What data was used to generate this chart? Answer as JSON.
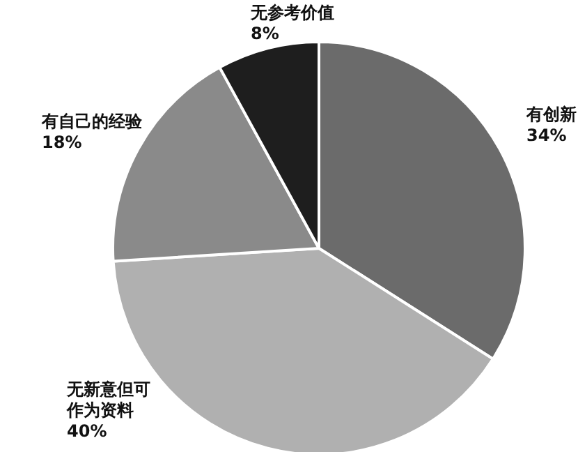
{
  "chart_data": {
    "type": "pie",
    "categories": [
      "有创新",
      "无新意但可作为资料",
      "有自己的经验",
      "无参考价值"
    ],
    "values": [
      34,
      40,
      18,
      8
    ],
    "colors": [
      "#6b6b6b",
      "#b0b0b0",
      "#8a8a8a",
      "#1e1e1e"
    ],
    "value_labels": [
      "34%",
      "40%",
      "18%",
      "8%"
    ]
  }
}
